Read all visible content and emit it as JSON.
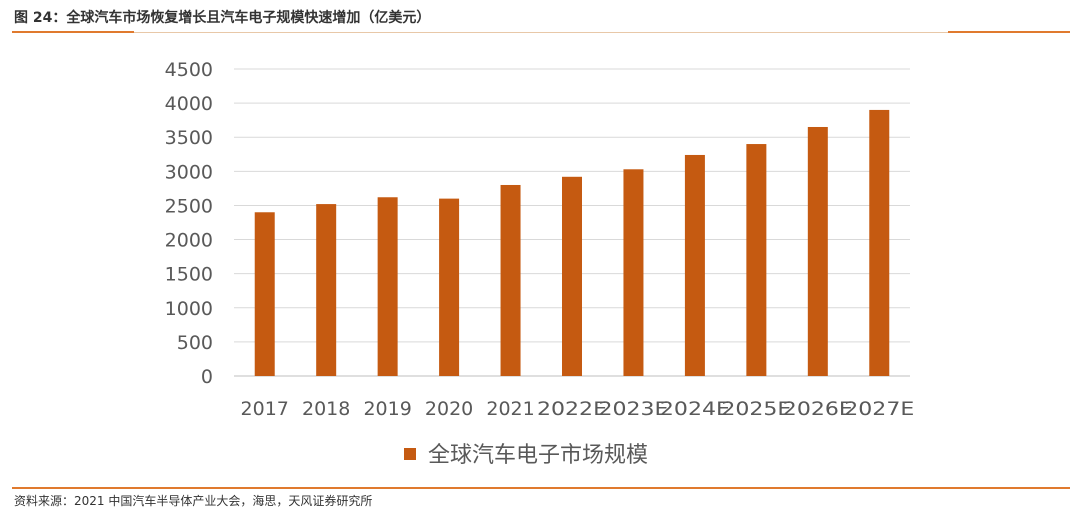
{
  "figure": {
    "title": "图 24：全球汽车市场恢复增长且汽车电子规模快速增加（亿美元）",
    "source": "资料来源：2021 中国汽车半导体产业大会，海思，天风证券研究所",
    "accent_color": "#e07a2e"
  },
  "chart_data": {
    "type": "bar",
    "title": "",
    "xlabel": "",
    "ylabel": "",
    "categories": [
      "2017",
      "2018",
      "2019",
      "2020",
      "2021",
      "2022E",
      "2023E",
      "2024E",
      "2025E",
      "2026E",
      "2027E"
    ],
    "series": [
      {
        "name": "全球汽车电子市场规模",
        "values": [
          2400,
          2520,
          2620,
          2600,
          2800,
          2920,
          3030,
          3240,
          3400,
          3650,
          3900
        ],
        "color": "#c55a11"
      }
    ],
    "ylim": [
      0,
      4500
    ],
    "yticks": [
      0,
      500,
      1000,
      1500,
      2000,
      2500,
      3000,
      3500,
      4000,
      4500
    ],
    "grid": true,
    "legend_position": "bottom"
  }
}
